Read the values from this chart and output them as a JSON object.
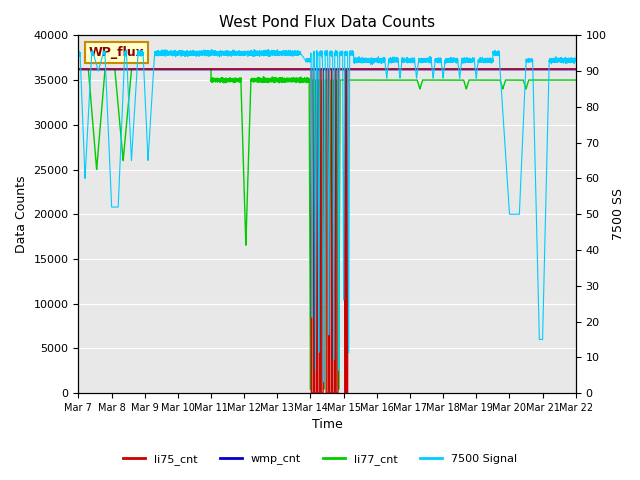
{
  "title": "West Pond Flux Data Counts",
  "xlabel": "Time",
  "ylabel_left": "Data Counts",
  "ylabel_right": "7500 SS",
  "ylim_left": [
    0,
    40000
  ],
  "ylim_right": [
    0,
    100
  ],
  "background_color": "#e8e8e8",
  "legend_box_label": "WP_flux",
  "legend_box_color": "#ffffcc",
  "legend_box_border": "#cc8800",
  "xtick_labels": [
    "Mar 7",
    "Mar 8",
    "Mar 9",
    "Mar 10",
    "Mar 11",
    "Mar 12",
    "Mar 13",
    "Mar 14",
    "Mar 15",
    "Mar 16",
    "Mar 17",
    "Mar 18",
    "Mar 19",
    "Mar 20",
    "Mar 21",
    "Mar 22"
  ],
  "colors": {
    "li75_cnt": "#cc0000",
    "wmp_cnt": "#0000cc",
    "li77_cnt": "#00cc00",
    "signal7500": "#00ccff"
  },
  "wmp_level": 36200,
  "li75_level_early": 36200,
  "li75_level_late": 36200,
  "li77_level_early": 36200,
  "li77_level_late": 35000
}
